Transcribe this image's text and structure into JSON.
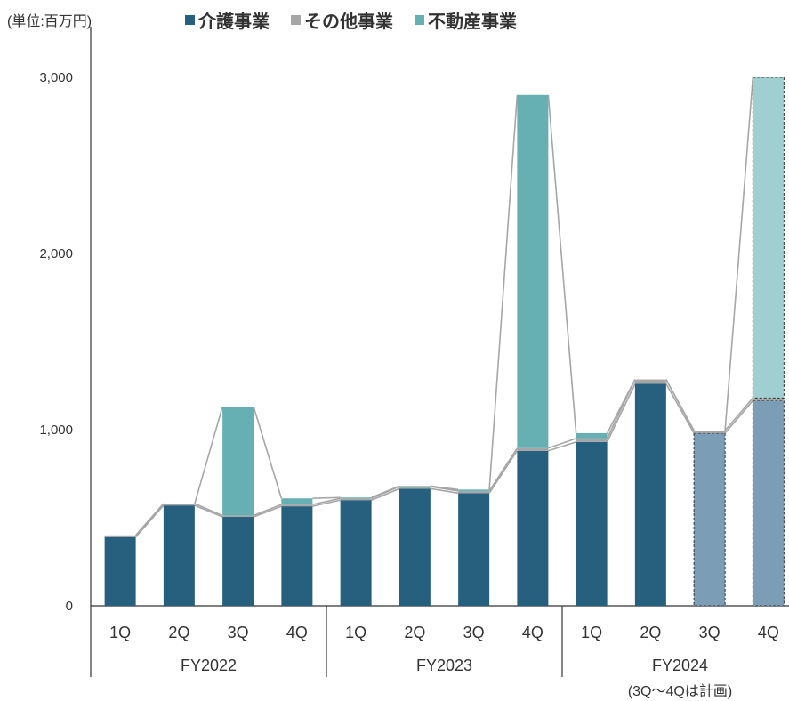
{
  "unit_label": "(単位:百万円)",
  "colors": {
    "care": "#27607f",
    "other": "#a6a6a6",
    "real_estate": "#66b0b4",
    "care_plan": "#7b9db6",
    "real_estate_plan": "#a0cfd1",
    "connector": "#a6a6a6"
  },
  "chart_data": {
    "type": "bar",
    "stacked": true,
    "legend_position": "top",
    "categories": [
      "1Q",
      "2Q",
      "3Q",
      "4Q",
      "1Q",
      "2Q",
      "3Q",
      "4Q",
      "1Q",
      "2Q",
      "3Q",
      "4Q"
    ],
    "groups": [
      {
        "label": "FY2022",
        "span": [
          0,
          3
        ]
      },
      {
        "label": "FY2023",
        "span": [
          4,
          7
        ]
      },
      {
        "label": "FY2024",
        "sublabel": "(3Q〜4Qは計画)",
        "span": [
          8,
          11
        ]
      }
    ],
    "series": [
      {
        "name": "介護事業",
        "color_key": "care",
        "values": [
          390,
          570,
          505,
          565,
          600,
          665,
          640,
          880,
          930,
          1260,
          980,
          1165
        ]
      },
      {
        "name": "その他事業",
        "color_key": "other",
        "values": [
          10,
          10,
          8,
          10,
          10,
          12,
          12,
          15,
          20,
          25,
          15,
          15
        ]
      },
      {
        "name": "不動産事業",
        "color_key": "real_estate",
        "values": [
          0,
          0,
          617,
          35,
          5,
          3,
          8,
          2005,
          30,
          0,
          0,
          1820
        ]
      }
    ],
    "plan_indices": [
      10,
      11
    ],
    "ylim": [
      0,
      3000
    ],
    "yticks": [
      0,
      1000,
      2000,
      3000
    ],
    "ytick_labels": [
      "0",
      "1,000",
      "2,000",
      "3,000"
    ],
    "grid": false
  }
}
